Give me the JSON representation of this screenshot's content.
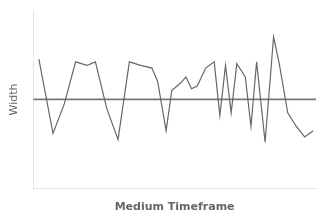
{
  "chart_data": {
    "type": "line",
    "xlabel": "Medium Timeframe",
    "ylabel": "Width",
    "x": [
      0.02,
      0.07,
      0.11,
      0.15,
      0.19,
      0.22,
      0.26,
      0.3,
      0.34,
      0.38,
      0.42,
      0.44,
      0.47,
      0.49,
      0.52,
      0.54,
      0.56,
      0.58,
      0.61,
      0.64,
      0.66,
      0.68,
      0.7,
      0.72,
      0.75,
      0.77,
      0.79,
      0.82,
      0.85,
      0.87,
      0.9,
      0.93,
      0.96,
      0.99
    ],
    "series": [
      {
        "color": "#666666",
        "values": [
          0.45,
          -0.38,
          -0.05,
          0.42,
          0.38,
          0.42,
          -0.1,
          -0.45,
          0.42,
          0.38,
          0.35,
          0.2,
          -0.35,
          0.1,
          0.18,
          0.25,
          0.12,
          0.15,
          0.35,
          0.42,
          -0.18,
          0.38,
          -0.15,
          0.4,
          0.25,
          -0.3,
          0.42,
          -0.48,
          0.7,
          0.4,
          -0.15,
          -0.3,
          -0.42,
          -0.35
        ]
      }
    ],
    "mean": 0.0,
    "mean_color": "#777777",
    "xlim": [
      0,
      1
    ],
    "ylim": [
      -1.0,
      1.0
    ],
    "xticks": [],
    "yticks": [],
    "tick_labels": false,
    "grid": false
  }
}
